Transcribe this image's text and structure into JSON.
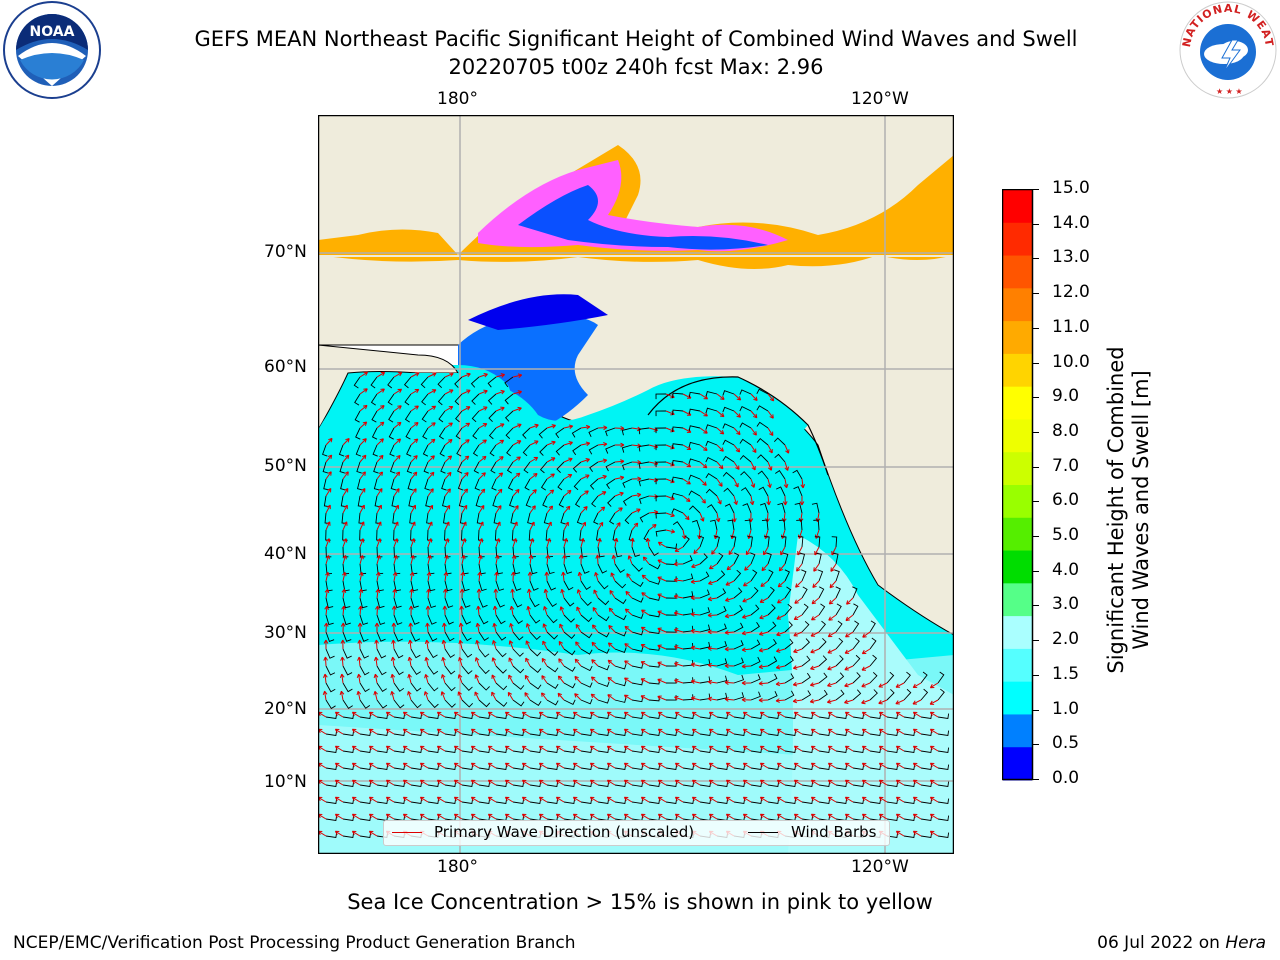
{
  "header": {
    "title_line1": "GEFS MEAN Northeast Pacific Significant Height of Combined Wind Waves and Swell",
    "title_line2": "20220705 t00z 240h fcst   Max: 2.96"
  },
  "logos": {
    "left": {
      "icon": "noaa-logo",
      "text": "NOAA"
    },
    "right": {
      "icon": "nws-logo",
      "text": "NATIONAL WEATHER SERVICE"
    }
  },
  "map": {
    "longitude_labels_top": [
      "180°",
      "120°W"
    ],
    "longitude_labels_bottom": [
      "180°",
      "120°W"
    ],
    "latitude_labels": [
      "70°N",
      "60°N",
      "50°N",
      "40°N",
      "30°N",
      "20°N",
      "10°N"
    ],
    "legend": {
      "wave_direction": "Primary Wave Direction (unscaled)",
      "wind_barbs": "Wind Barbs"
    },
    "colors": {
      "land": "#efecdc",
      "ocean_low": "#00ffff",
      "ocean_mid": "#40f5f5",
      "ocean_high": "#aafcfc",
      "gulf": "#0070ff",
      "ice_pink": "#ff60ff",
      "ice_orange": "#ffb000",
      "wave_arrow": "#dd0000",
      "grid": "#b0b0b0"
    }
  },
  "colorbar": {
    "title_line1": "Significant Height of Combined",
    "title_line2": "Wind Waves and Swell [m]",
    "ticks": [
      "15.0",
      "14.0",
      "13.0",
      "12.0",
      "11.0",
      "10.0",
      "9.0",
      "8.0",
      "7.0",
      "6.0",
      "5.0",
      "4.0",
      "3.0",
      "2.0",
      "1.5",
      "1.0",
      "0.5",
      "0.0"
    ],
    "colors_top_to_bottom": [
      "#ff0000",
      "#ff2a00",
      "#ff5500",
      "#ff8000",
      "#ffaa00",
      "#ffd400",
      "#ffff00",
      "#eeff00",
      "#ccff00",
      "#99ff00",
      "#55ee00",
      "#00dd00",
      "#55ff88",
      "#aaffff",
      "#55ffff",
      "#00ffff",
      "#0080ff",
      "#0000ff"
    ]
  },
  "caption": "Sea Ice Concentration > 15% is shown in pink to yellow",
  "footer": {
    "left": "NCEP/EMC/Verification Post Processing Product Generation Branch",
    "right_date": "06 Jul 2022 on ",
    "right_host": "Hera"
  }
}
